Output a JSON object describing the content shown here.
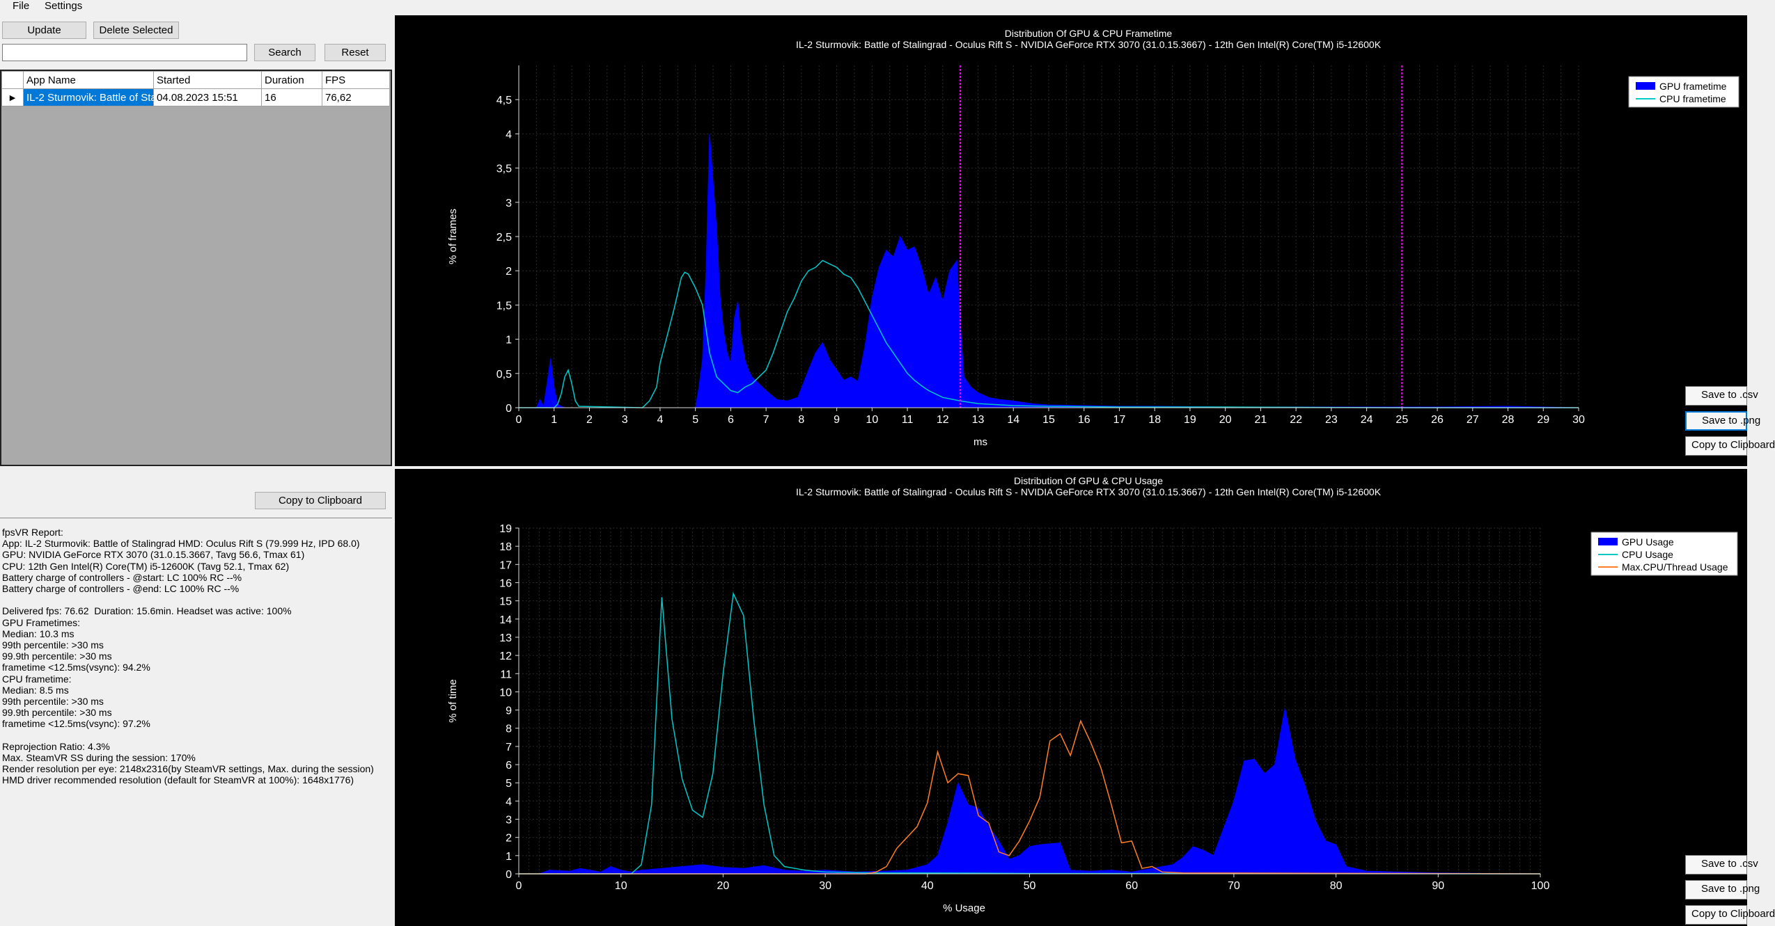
{
  "menu": {
    "file": "File",
    "settings": "Settings"
  },
  "toolbar": {
    "update": "Update",
    "delete_selected": "Delete Selected",
    "search": "Search",
    "reset": "Reset",
    "search_value": ""
  },
  "grid": {
    "columns": [
      "App Name",
      "Started",
      "Duration",
      "FPS"
    ],
    "rows": [
      {
        "app": "IL-2 Sturmovik: Battle of Sta...",
        "started": "04.08.2023 15:51",
        "duration": "16",
        "fps": "76,62"
      }
    ]
  },
  "report": {
    "copy_button": "Copy to Clipboard",
    "lines": [
      "fpsVR Report:",
      "App: IL-2 Sturmovik: Battle of Stalingrad HMD: Oculus Rift S (79.999 Hz, IPD 68.0)",
      "GPU: NVIDIA GeForce RTX 3070 (31.0.15.3667, Tavg 56.6, Tmax 61)",
      "CPU: 12th Gen Intel(R) Core(TM) i5-12600K (Tavg 52.1, Tmax 62)",
      "Battery charge of controllers - @start: LC 100% RC --%",
      "Battery charge of controllers - @end: LC 100% RC --%",
      "",
      "Delivered fps: 76.62  Duration: 15.6min. Headset was active: 100%",
      "GPU Frametimes:",
      "Median: 10.3 ms",
      "99th percentile: >30 ms",
      "99.9th percentile: >30 ms",
      "frametime <12.5ms(vsync): 94.2%",
      "CPU frametime:",
      "Median: 8.5 ms",
      "99th percentile: >30 ms",
      "99.9th percentile: >30 ms",
      "frametime <12.5ms(vsync): 97.2%",
      "",
      "Reprojection Ratio: 4.3%",
      "Max. SteamVR SS during the session: 170%",
      "Render resolution per eye: 2148x2316(by SteamVR settings, Max. during the session)",
      "HMD driver recommended resolution (default for SteamVR at 100%): 1648x1776)"
    ]
  },
  "side_buttons": {
    "save_csv": "Save to .csv",
    "save_png": "Save to .png",
    "copy_clipboard": "Copy to Clipboard"
  },
  "colors": {
    "gpu": "#0000ff",
    "cpu": "#00c8c8",
    "maxcpu": "#ff7f27",
    "vsync": "#ff00ff",
    "grid": "#2a2a2a"
  },
  "chart_data": [
    {
      "type": "area",
      "title": "Distribution Of GPU & CPU Frametime",
      "subtitle": "IL-2 Sturmovik: Battle of Stalingrad - Oculus Rift S - NVIDIA GeForce RTX 3070 (31.0.15.3667) - 12th Gen Intel(R) Core(TM) i5-12600K",
      "xlabel": "ms",
      "ylabel": "% of frames",
      "xlim": [
        0,
        30
      ],
      "ylim": [
        0,
        5
      ],
      "xticks": [
        0,
        1,
        2,
        3,
        4,
        5,
        6,
        7,
        8,
        9,
        10,
        11,
        12,
        13,
        14,
        15,
        16,
        17,
        18,
        19,
        20,
        21,
        22,
        23,
        24,
        25,
        26,
        27,
        28,
        29,
        30
      ],
      "yticks": [
        0,
        0.5,
        1,
        1.5,
        2,
        2.5,
        3,
        3.5,
        4,
        4.5
      ],
      "ytick_labels": [
        "0",
        "0,5",
        "1",
        "1,5",
        "2",
        "2,5",
        "3",
        "3,5",
        "4",
        "4,5"
      ],
      "vlines": [
        12.5,
        25
      ],
      "legend": "top-right",
      "series": [
        {
          "name": "GPU frametime",
          "style": "area",
          "x": [
            0,
            0.5,
            0.6,
            0.7,
            0.8,
            0.9,
            1.0,
            1.1,
            1.2,
            1.3,
            5.0,
            5.1,
            5.2,
            5.3,
            5.4,
            5.5,
            5.6,
            5.7,
            5.8,
            5.9,
            6.0,
            6.1,
            6.2,
            6.3,
            6.4,
            6.5,
            6.6,
            6.7,
            6.8,
            7.0,
            7.3,
            7.6,
            7.9,
            8.2,
            8.4,
            8.6,
            8.8,
            9.0,
            9.2,
            9.4,
            9.6,
            9.8,
            10.0,
            10.2,
            10.4,
            10.6,
            10.8,
            11.0,
            11.2,
            11.4,
            11.6,
            11.8,
            12.0,
            12.2,
            12.4,
            12.5,
            12.6,
            12.8,
            13.0,
            13.3,
            13.6,
            14.0,
            14.5,
            15,
            16,
            17,
            18,
            20,
            22,
            24,
            26,
            28,
            30
          ],
          "y": [
            0,
            0,
            0.12,
            0.02,
            0.35,
            0.72,
            0.3,
            0.05,
            0.02,
            0,
            0,
            0.3,
            0.7,
            2.0,
            4.0,
            3.3,
            2.6,
            1.6,
            1.1,
            0.8,
            0.65,
            1.3,
            1.55,
            1.0,
            0.7,
            0.55,
            0.45,
            0.4,
            0.35,
            0.25,
            0.12,
            0.1,
            0.15,
            0.55,
            0.8,
            0.95,
            0.7,
            0.55,
            0.4,
            0.45,
            0.38,
            0.9,
            1.6,
            2.05,
            2.3,
            2.2,
            2.5,
            2.3,
            2.35,
            2.05,
            1.65,
            1.9,
            1.55,
            2.0,
            2.15,
            1.2,
            0.45,
            0.3,
            0.22,
            0.15,
            0.12,
            0.1,
            0.06,
            0.04,
            0.03,
            0.02,
            0.02,
            0.01,
            0.01,
            0.01,
            0.01,
            0.02,
            0
          ]
        },
        {
          "name": "CPU frametime",
          "style": "line",
          "x": [
            0,
            1.0,
            1.1,
            1.2,
            1.3,
            1.4,
            1.5,
            1.6,
            1.7,
            3.5,
            3.7,
            3.9,
            4.0,
            4.2,
            4.4,
            4.6,
            4.7,
            4.8,
            5.0,
            5.2,
            5.4,
            5.6,
            5.8,
            6.0,
            6.2,
            6.4,
            6.6,
            6.8,
            7.0,
            7.2,
            7.4,
            7.6,
            7.8,
            8.0,
            8.2,
            8.4,
            8.6,
            8.8,
            9.0,
            9.2,
            9.4,
            9.6,
            9.8,
            10.0,
            10.2,
            10.4,
            10.6,
            10.8,
            11.0,
            11.2,
            11.4,
            11.6,
            11.8,
            12.0,
            12.5,
            13,
            14,
            15,
            17,
            20,
            25,
            28,
            30
          ],
          "y": [
            0,
            0,
            0.05,
            0.2,
            0.45,
            0.55,
            0.35,
            0.1,
            0.02,
            0,
            0.1,
            0.3,
            0.65,
            1.05,
            1.45,
            1.9,
            1.98,
            1.95,
            1.75,
            1.5,
            0.8,
            0.45,
            0.35,
            0.25,
            0.22,
            0.3,
            0.35,
            0.45,
            0.55,
            0.8,
            1.1,
            1.4,
            1.6,
            1.85,
            2.0,
            2.05,
            2.15,
            2.1,
            2.05,
            1.95,
            1.9,
            1.75,
            1.55,
            1.35,
            1.15,
            0.95,
            0.8,
            0.65,
            0.5,
            0.4,
            0.32,
            0.25,
            0.2,
            0.15,
            0.1,
            0.06,
            0.03,
            0.02,
            0.01,
            0.01,
            0,
            0,
            0
          ]
        }
      ]
    },
    {
      "type": "area",
      "title": "Distribution Of GPU & CPU Usage",
      "subtitle": "IL-2 Sturmovik: Battle of Stalingrad - Oculus Rift S - NVIDIA GeForce RTX 3070 (31.0.15.3667) - 12th Gen Intel(R) Core(TM) i5-12600K",
      "xlabel": "% Usage",
      "ylabel": "% of time",
      "xlim": [
        0,
        100
      ],
      "ylim": [
        0,
        19
      ],
      "xticks": [
        0,
        10,
        20,
        30,
        40,
        50,
        60,
        70,
        80,
        90,
        100
      ],
      "yticks": [
        0,
        1,
        2,
        3,
        4,
        5,
        6,
        7,
        8,
        9,
        10,
        11,
        12,
        13,
        14,
        15,
        16,
        17,
        18,
        19
      ],
      "ytick_labels": [
        "0",
        "1",
        "2",
        "3",
        "4",
        "5",
        "6",
        "7",
        "8",
        "9",
        "10",
        "11",
        "12",
        "13",
        "14",
        "15",
        "16",
        "17",
        "18",
        "19"
      ],
      "vlines": [],
      "legend": "top-right",
      "series": [
        {
          "name": "GPU Usage",
          "style": "area",
          "x": [
            0,
            2,
            3,
            5,
            6,
            8,
            9,
            10,
            11,
            12,
            14,
            16,
            18,
            20,
            22,
            24,
            26,
            28,
            30,
            33,
            36,
            38,
            40,
            41,
            42,
            43,
            44,
            45,
            46,
            47,
            48,
            49,
            50,
            51,
            52,
            53,
            54,
            56,
            58,
            60,
            62,
            64,
            65,
            66,
            67,
            68,
            69,
            70,
            71,
            72,
            73,
            74,
            75,
            76,
            77,
            78,
            79,
            80,
            81,
            83,
            86,
            90,
            95,
            100
          ],
          "y": [
            0,
            0,
            0.2,
            0.15,
            0.3,
            0.1,
            0.4,
            0.2,
            0.1,
            0.2,
            0.3,
            0.4,
            0.5,
            0.35,
            0.3,
            0.45,
            0.2,
            0.15,
            0.2,
            0.1,
            0.15,
            0.2,
            0.5,
            1.0,
            2.8,
            5.0,
            3.8,
            3.6,
            2.6,
            1.8,
            0.8,
            1.0,
            1.5,
            1.6,
            1.65,
            1.7,
            0.2,
            0.15,
            0.2,
            0.1,
            0.3,
            0.5,
            0.9,
            1.5,
            1.3,
            1.0,
            2.5,
            4.0,
            6.2,
            6.3,
            5.5,
            6.0,
            9.1,
            6.3,
            4.8,
            2.9,
            1.8,
            1.6,
            0.4,
            0.15,
            0.1,
            0.05,
            0.02,
            0
          ]
        },
        {
          "name": "CPU Usage",
          "style": "line",
          "x": [
            0,
            11,
            12,
            13,
            14,
            15,
            16,
            17,
            18,
            19,
            20,
            21,
            22,
            23,
            24,
            25,
            26,
            28,
            30,
            35,
            40,
            50,
            60,
            70,
            80,
            100
          ],
          "y": [
            0,
            0,
            0.5,
            3.8,
            15.2,
            8.5,
            5.2,
            3.5,
            3.1,
            5.5,
            11.0,
            15.4,
            14.2,
            8.5,
            3.8,
            1.0,
            0.4,
            0.2,
            0.1,
            0.05,
            0.05,
            0.02,
            0.02,
            0.02,
            0.01,
            0
          ]
        },
        {
          "name": "Max.CPU/Thread Usage",
          "style": "line",
          "x": [
            0,
            34,
            35,
            36,
            37,
            38,
            39,
            40,
            41,
            42,
            43,
            44,
            45,
            46,
            47,
            48,
            49,
            50,
            51,
            52,
            53,
            54,
            55,
            56,
            57,
            58,
            59,
            60,
            61,
            62,
            63,
            65,
            100
          ],
          "y": [
            0,
            0,
            0.1,
            0.4,
            1.4,
            2.0,
            2.6,
            3.9,
            6.7,
            5.0,
            5.5,
            5.4,
            3.2,
            2.8,
            1.2,
            1.0,
            1.8,
            2.9,
            4.2,
            7.3,
            7.7,
            6.5,
            8.4,
            7.2,
            5.8,
            3.8,
            1.7,
            1.8,
            0.3,
            0.4,
            0.1,
            0.05,
            0
          ]
        }
      ]
    }
  ]
}
